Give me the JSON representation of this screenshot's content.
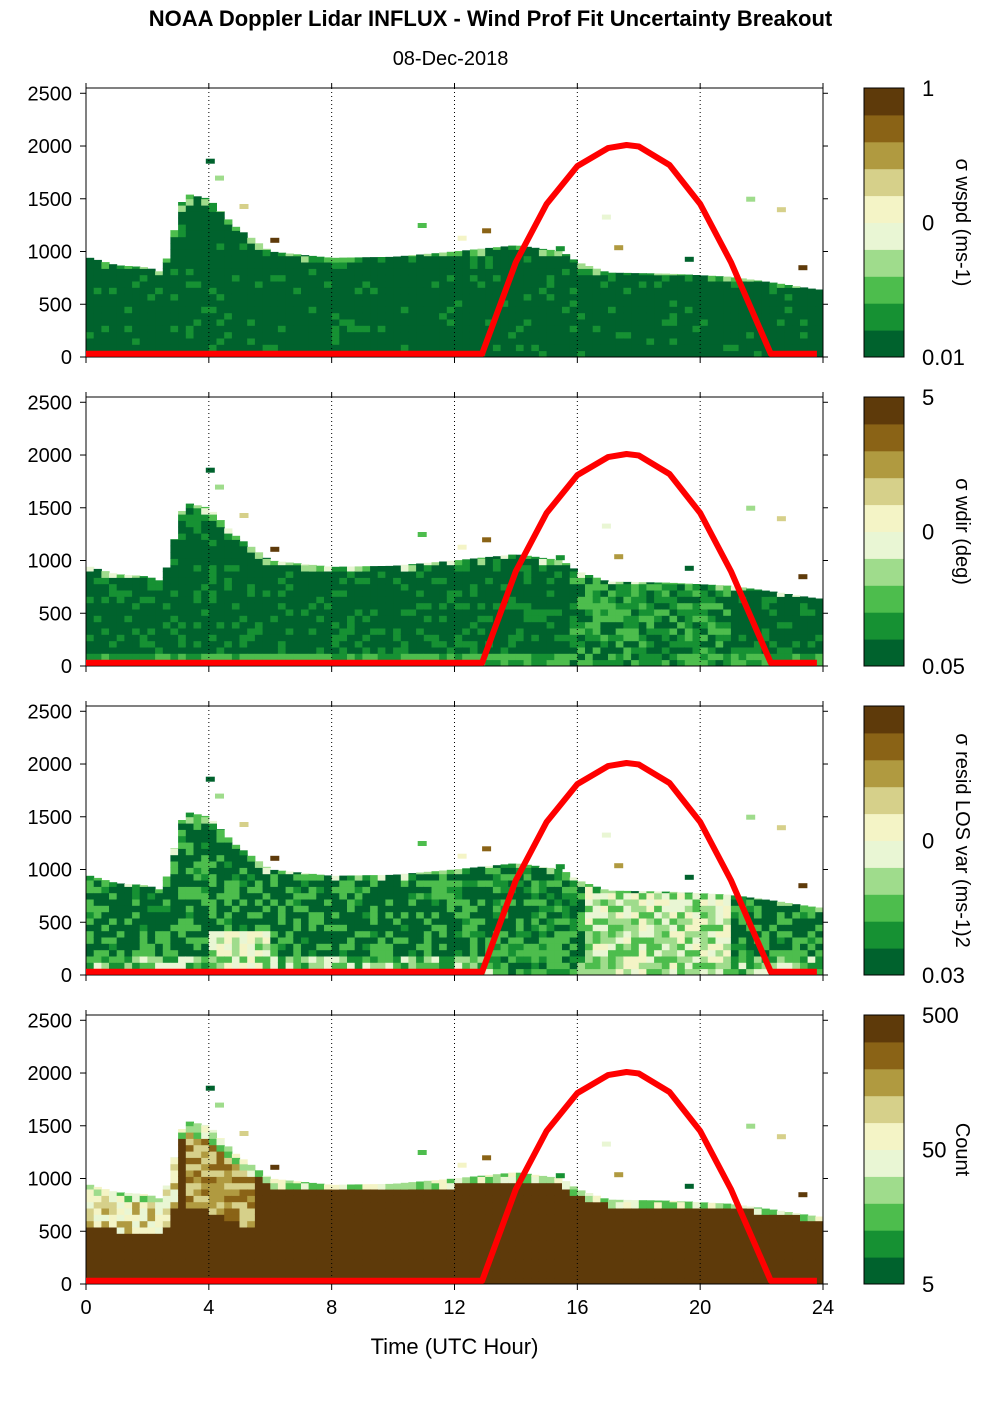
{
  "header": {
    "title": "NOAA Doppler Lidar INFLUX - Wind Prof Fit Uncertainty Breakout",
    "date": "08-Dec-2018"
  },
  "colors": {
    "sun_curve": "#ff0000",
    "colormap": [
      "#00622d",
      "#169133",
      "#4dbd4d",
      "#9fdc8c",
      "#e9f6d4",
      "#f4f4c6",
      "#d6d08a",
      "#b09a40",
      "#8a6316",
      "#5e3a0a"
    ]
  },
  "chart_data": [
    {
      "type": "heatmap",
      "panel": "wspd",
      "xlabel": "",
      "ylabel": "",
      "x_ticks": [
        "0",
        "4",
        "8",
        "12",
        "16",
        "20",
        "24"
      ],
      "y_ticks": [
        "0",
        "500",
        "1000",
        "1500",
        "2000",
        "2500"
      ],
      "xlim": [
        0,
        24
      ],
      "ylim": [
        0,
        2550
      ],
      "colorbar": {
        "label": "σ wspd (ms-1)",
        "ticks": [
          "1",
          "0",
          "0.01"
        ],
        "scale": "log"
      },
      "profile_top_m": [
        [
          0,
          950
        ],
        [
          1,
          870
        ],
        [
          2,
          850
        ],
        [
          2.5,
          800
        ],
        [
          3.2,
          1550
        ],
        [
          4,
          1500
        ],
        [
          4.8,
          1250
        ],
        [
          6,
          1000
        ],
        [
          8,
          940
        ],
        [
          10,
          950
        ],
        [
          12,
          1000
        ],
        [
          14,
          1060
        ],
        [
          15.5,
          1000
        ],
        [
          16,
          900
        ],
        [
          17,
          800
        ],
        [
          19,
          790
        ],
        [
          21,
          760
        ],
        [
          22.5,
          700
        ],
        [
          23.8,
          640
        ]
      ],
      "sun_elevation_curve": [
        [
          0,
          30
        ],
        [
          12.9,
          30
        ],
        [
          14,
          900
        ],
        [
          15,
          1450
        ],
        [
          16,
          1810
        ],
        [
          17,
          1980
        ],
        [
          17.6,
          2010
        ],
        [
          18,
          1995
        ],
        [
          19,
          1820
        ],
        [
          20,
          1450
        ],
        [
          21,
          900
        ],
        [
          22.3,
          30
        ],
        [
          23.8,
          30
        ]
      ]
    },
    {
      "type": "heatmap",
      "panel": "wdir",
      "xlabel": "",
      "ylabel": "",
      "x_ticks": [
        "0",
        "4",
        "8",
        "12",
        "16",
        "20",
        "24"
      ],
      "y_ticks": [
        "0",
        "500",
        "1000",
        "1500",
        "2000",
        "2500"
      ],
      "xlim": [
        0,
        24
      ],
      "ylim": [
        0,
        2550
      ],
      "colorbar": {
        "label": "σ wdir (deg)",
        "ticks": [
          "5",
          "0",
          "0.05"
        ],
        "scale": "log"
      },
      "profile_top_m": [
        [
          0,
          950
        ],
        [
          1,
          870
        ],
        [
          2,
          850
        ],
        [
          2.5,
          800
        ],
        [
          3.2,
          1550
        ],
        [
          4,
          1500
        ],
        [
          4.8,
          1250
        ],
        [
          6,
          1000
        ],
        [
          8,
          940
        ],
        [
          10,
          950
        ],
        [
          12,
          1000
        ],
        [
          14,
          1060
        ],
        [
          15.5,
          1000
        ],
        [
          16,
          900
        ],
        [
          17,
          800
        ],
        [
          19,
          790
        ],
        [
          21,
          760
        ],
        [
          22.5,
          700
        ],
        [
          23.8,
          640
        ]
      ],
      "sun_elevation_curve": [
        [
          0,
          30
        ],
        [
          12.9,
          30
        ],
        [
          14,
          900
        ],
        [
          15,
          1450
        ],
        [
          16,
          1810
        ],
        [
          17,
          1980
        ],
        [
          17.6,
          2010
        ],
        [
          18,
          1995
        ],
        [
          19,
          1820
        ],
        [
          20,
          1450
        ],
        [
          21,
          900
        ],
        [
          22.3,
          30
        ],
        [
          23.8,
          30
        ]
      ]
    },
    {
      "type": "heatmap",
      "panel": "resid",
      "xlabel": "",
      "ylabel": "",
      "x_ticks": [
        "0",
        "4",
        "8",
        "12",
        "16",
        "20",
        "24"
      ],
      "y_ticks": [
        "0",
        "500",
        "1000",
        "1500",
        "2000",
        "2500"
      ],
      "xlim": [
        0,
        24
      ],
      "ylim": [
        0,
        2550
      ],
      "colorbar": {
        "label": "σ resid LOS var (ms-1)2",
        "ticks": [
          "0",
          "0.03"
        ],
        "scale": "log"
      },
      "profile_top_m": [
        [
          0,
          950
        ],
        [
          1,
          870
        ],
        [
          2,
          850
        ],
        [
          2.5,
          800
        ],
        [
          3.2,
          1550
        ],
        [
          4,
          1500
        ],
        [
          4.8,
          1250
        ],
        [
          6,
          1000
        ],
        [
          8,
          940
        ],
        [
          10,
          950
        ],
        [
          12,
          1000
        ],
        [
          14,
          1060
        ],
        [
          15.5,
          1000
        ],
        [
          16,
          900
        ],
        [
          17,
          800
        ],
        [
          19,
          790
        ],
        [
          21,
          760
        ],
        [
          22.5,
          700
        ],
        [
          23.8,
          640
        ]
      ],
      "sun_elevation_curve": [
        [
          0,
          30
        ],
        [
          12.9,
          30
        ],
        [
          14,
          900
        ],
        [
          15,
          1450
        ],
        [
          16,
          1810
        ],
        [
          17,
          1980
        ],
        [
          17.6,
          2010
        ],
        [
          18,
          1995
        ],
        [
          19,
          1820
        ],
        [
          20,
          1450
        ],
        [
          21,
          900
        ],
        [
          22.3,
          30
        ],
        [
          23.8,
          30
        ]
      ]
    },
    {
      "type": "heatmap",
      "panel": "count",
      "xlabel": "Time (UTC Hour)",
      "ylabel": "",
      "x_ticks": [
        "0",
        "4",
        "8",
        "12",
        "16",
        "20",
        "24"
      ],
      "y_ticks": [
        "0",
        "500",
        "1000",
        "1500",
        "2000",
        "2500"
      ],
      "xlim": [
        0,
        24
      ],
      "ylim": [
        0,
        2550
      ],
      "colorbar": {
        "label": "Count",
        "ticks": [
          "500",
          "50",
          "5"
        ],
        "scale": "log"
      },
      "profile_top_m": [
        [
          0,
          950
        ],
        [
          1,
          870
        ],
        [
          2,
          850
        ],
        [
          2.5,
          800
        ],
        [
          3.2,
          1550
        ],
        [
          4,
          1500
        ],
        [
          4.8,
          1250
        ],
        [
          6,
          1000
        ],
        [
          8,
          940
        ],
        [
          10,
          950
        ],
        [
          12,
          1000
        ],
        [
          14,
          1060
        ],
        [
          15.5,
          1000
        ],
        [
          16,
          900
        ],
        [
          17,
          800
        ],
        [
          19,
          790
        ],
        [
          21,
          760
        ],
        [
          22.5,
          700
        ],
        [
          23.8,
          640
        ]
      ],
      "sun_elevation_curve": [
        [
          0,
          30
        ],
        [
          12.9,
          30
        ],
        [
          14,
          900
        ],
        [
          15,
          1450
        ],
        [
          16,
          1810
        ],
        [
          17,
          1980
        ],
        [
          17.6,
          2010
        ],
        [
          18,
          1995
        ],
        [
          19,
          1820
        ],
        [
          20,
          1450
        ],
        [
          21,
          900
        ],
        [
          22.3,
          30
        ],
        [
          23.8,
          30
        ]
      ]
    }
  ]
}
